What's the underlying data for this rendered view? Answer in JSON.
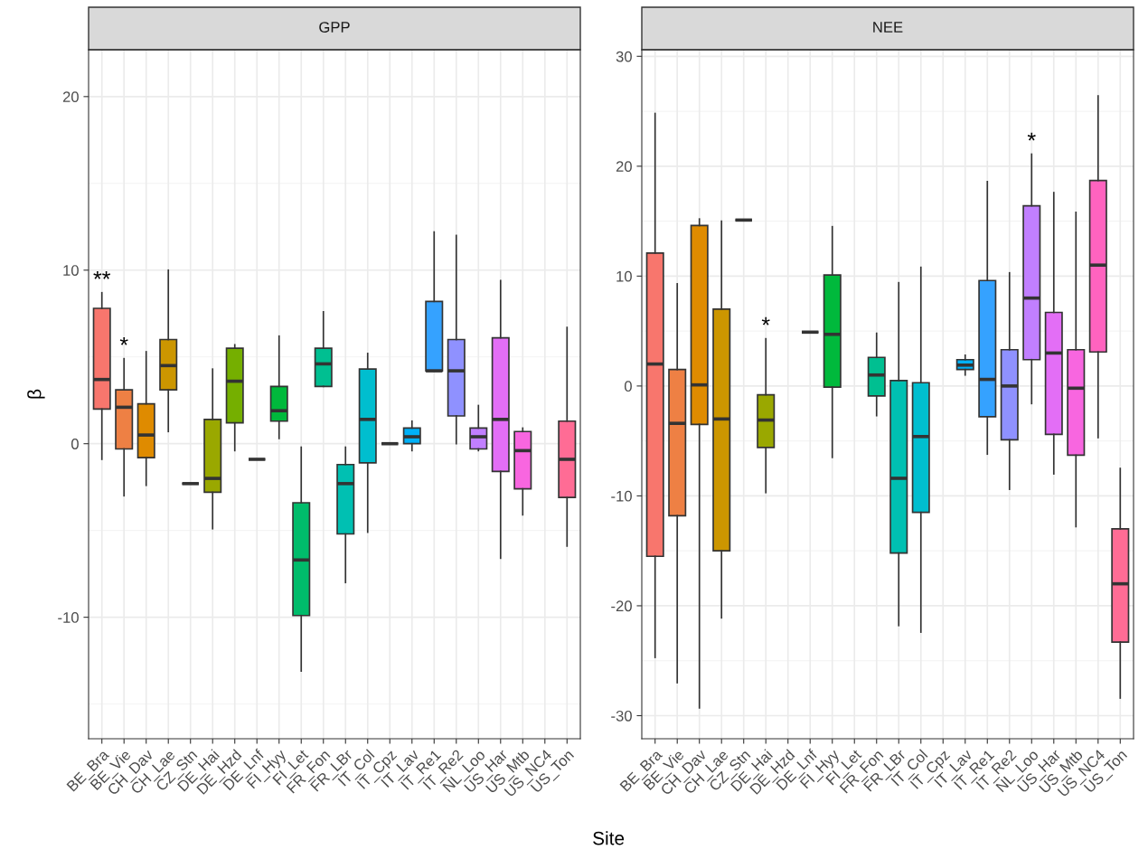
{
  "chart_data": [
    {
      "type": "box",
      "title": "GPP",
      "ylabel": "β",
      "xlabel": "Site",
      "grid": true,
      "categories": [
        "BE_Bra",
        "BE_Vie",
        "CH_Dav",
        "CH_Lae",
        "CZ_Stn",
        "DE_Hai",
        "DE_Hzd",
        "DE_Lnf",
        "FI_Hyy",
        "FI_Let",
        "FR_Fon",
        "FR_LBr",
        "IT_Col",
        "IT_Cpz",
        "IT_Lav",
        "IT_Re1",
        "IT_Re2",
        "NL_Loo",
        "US_Har",
        "US_Mtb",
        "US_NC4",
        "US_Ton"
      ],
      "colors": [
        "#f8766d",
        "#ee8044",
        "#df8b00",
        "#cc9600",
        "#333333",
        "#9aa800",
        "#75af00",
        "#333333",
        "#00b93c",
        "#00bc6b",
        "#00bf91",
        "#00c0b2",
        "#00becf",
        "#333333",
        "#00b1f8",
        "#35a2ff",
        "#8f91ff",
        "#c17fff",
        "#e36ef6",
        "#f866e0",
        "#ff63bf",
        "#ff6c95"
      ],
      "boxes": [
        {
          "low": -0.9,
          "q1": 2.0,
          "median": 3.7,
          "q3": 7.8,
          "high": 8.7
        },
        {
          "low": -3.0,
          "q1": -0.3,
          "median": 2.1,
          "q3": 3.1,
          "high": 4.9
        },
        {
          "low": -2.4,
          "q1": -0.8,
          "median": 0.5,
          "q3": 2.3,
          "high": 5.3
        },
        {
          "low": 0.7,
          "q1": 3.1,
          "median": 4.5,
          "q3": 6.0,
          "high": 10.0
        },
        {
          "low": -2.3,
          "q1": -2.3,
          "median": -2.3,
          "q3": -2.3,
          "high": -2.3
        },
        {
          "low": -4.9,
          "q1": -2.8,
          "median": -2.0,
          "q3": 1.4,
          "high": 4.3
        },
        {
          "low": -0.4,
          "q1": 1.2,
          "median": 3.6,
          "q3": 5.5,
          "high": 5.7
        },
        {
          "low": -0.9,
          "q1": -0.9,
          "median": -0.9,
          "q3": -0.9,
          "high": -0.9
        },
        {
          "low": 0.3,
          "q1": 1.3,
          "median": 1.9,
          "q3": 3.3,
          "high": 6.2
        },
        {
          "low": -13.1,
          "q1": -9.9,
          "median": -6.7,
          "q3": -3.4,
          "high": -0.2
        },
        {
          "low": 3.3,
          "q1": 3.3,
          "median": 4.6,
          "q3": 5.5,
          "high": 7.6
        },
        {
          "low": -8.0,
          "q1": -5.2,
          "median": -2.3,
          "q3": -1.2,
          "high": -0.2
        },
        {
          "low": -5.1,
          "q1": -1.1,
          "median": 1.4,
          "q3": 4.3,
          "high": 5.2
        },
        {
          "low": 0.0,
          "q1": 0.0,
          "median": 0.0,
          "q3": 0.0,
          "high": 0.0
        },
        {
          "low": -0.4,
          "q1": 0.0,
          "median": 0.4,
          "q3": 0.9,
          "high": 1.3
        },
        {
          "low": 4.2,
          "q1": 4.2,
          "median": 4.2,
          "q3": 8.2,
          "high": 12.2
        },
        {
          "low": 0.0,
          "q1": 1.6,
          "median": 4.2,
          "q3": 6.0,
          "high": 12.0
        },
        {
          "low": -0.4,
          "q1": -0.3,
          "median": 0.4,
          "q3": 0.9,
          "high": 2.2
        },
        {
          "low": -6.6,
          "q1": -1.6,
          "median": 1.4,
          "q3": 6.1,
          "high": 9.4
        },
        {
          "low": -4.1,
          "q1": -2.6,
          "median": -0.4,
          "q3": 0.7,
          "high": 0.9
        },
        null,
        {
          "low": -5.9,
          "q1": -3.1,
          "median": -0.9,
          "q3": 1.3,
          "high": 6.7
        }
      ],
      "ylim": [
        -17,
        22.7
      ],
      "yticks": [
        -10,
        0,
        10,
        20
      ],
      "annotations": [
        {
          "text": "**",
          "x": "BE_Bra",
          "y": 8.7
        },
        {
          "text": "*",
          "x": "BE_Vie",
          "y": 4.9
        }
      ]
    },
    {
      "type": "box",
      "title": "NEE",
      "grid": true,
      "categories": [
        "BE_Bra",
        "BE_Vie",
        "CH_Dav",
        "CH_Lae",
        "CZ_Stn",
        "DE_Hai",
        "DE_Hzd",
        "DE_Lnf",
        "FI_Hyy",
        "FI_Let",
        "FR_Fon",
        "FR_LBr",
        "IT_Col",
        "IT_Cpz",
        "IT_Lav",
        "IT_Re1",
        "IT_Re2",
        "NL_Loo",
        "US_Har",
        "US_Mtb",
        "US_NC4",
        "US_Ton"
      ],
      "colors": [
        "#f8766d",
        "#ee8044",
        "#df8b00",
        "#cc9600",
        "#333333",
        "#9aa800",
        "#75af00",
        "#333333",
        "#00b93c",
        "#00bc6b",
        "#00bf91",
        "#00c0b2",
        "#00becf",
        "#00b9e7",
        "#00b1f8",
        "#35a2ff",
        "#8f91ff",
        "#c17fff",
        "#e36ef6",
        "#f866e0",
        "#ff63bf",
        "#ff6c95"
      ],
      "boxes": [
        {
          "low": -24.7,
          "q1": -15.5,
          "median": 2.0,
          "q3": 12.1,
          "high": 24.8
        },
        {
          "low": -27.0,
          "q1": -11.8,
          "median": -3.4,
          "q3": 1.5,
          "high": 9.3
        },
        {
          "low": -29.3,
          "q1": -3.5,
          "median": 0.1,
          "q3": 14.6,
          "high": 15.2
        },
        {
          "low": -21.1,
          "q1": -15.0,
          "median": -3.0,
          "q3": 7.0,
          "high": 15.0
        },
        {
          "low": 15.1,
          "q1": 15.1,
          "median": 15.1,
          "q3": 15.1,
          "high": 15.1
        },
        {
          "low": -9.7,
          "q1": -5.6,
          "median": -3.1,
          "q3": -0.8,
          "high": 4.3
        },
        null,
        {
          "low": 4.9,
          "q1": 4.9,
          "median": 4.9,
          "q3": 4.9,
          "high": 4.9
        },
        {
          "low": -6.5,
          "q1": -0.1,
          "median": 4.7,
          "q3": 10.1,
          "high": 14.5
        },
        null,
        {
          "low": -2.7,
          "q1": -0.9,
          "median": 1.0,
          "q3": 2.6,
          "high": 4.8
        },
        {
          "low": -21.8,
          "q1": -15.2,
          "median": -8.4,
          "q3": 0.5,
          "high": 9.4
        },
        {
          "low": -22.4,
          "q1": -11.5,
          "median": -4.6,
          "q3": 0.3,
          "high": 10.8
        },
        null,
        {
          "low": 1.0,
          "q1": 1.5,
          "median": 1.9,
          "q3": 2.4,
          "high": 2.8
        },
        {
          "low": -6.2,
          "q1": -2.8,
          "median": 0.6,
          "q3": 9.6,
          "high": 18.6
        },
        {
          "low": -9.4,
          "q1": -4.9,
          "median": 0.0,
          "q3": 3.3,
          "high": 10.3
        },
        {
          "low": -1.6,
          "q1": 2.4,
          "median": 8.0,
          "q3": 16.4,
          "high": 21.1
        },
        {
          "low": -8.0,
          "q1": -4.4,
          "median": 3.0,
          "q3": 6.7,
          "high": 17.6
        },
        {
          "low": -12.8,
          "q1": -6.3,
          "median": -0.2,
          "q3": 3.3,
          "high": 15.8
        },
        {
          "low": -4.7,
          "q1": 3.1,
          "median": 11.0,
          "q3": 18.7,
          "high": 26.4
        },
        {
          "low": -28.4,
          "q1": -23.3,
          "median": -18.0,
          "q3": -13.0,
          "high": -7.5
        }
      ],
      "ylim": [
        -32.1,
        30.6
      ],
      "yticks": [
        -30,
        -20,
        -10,
        0,
        10,
        20,
        30
      ],
      "annotations": [
        {
          "text": "*",
          "x": "DE_Hai",
          "y": 4.3
        },
        {
          "text": "*",
          "x": "NL_Loo",
          "y": 21.1
        }
      ]
    }
  ]
}
